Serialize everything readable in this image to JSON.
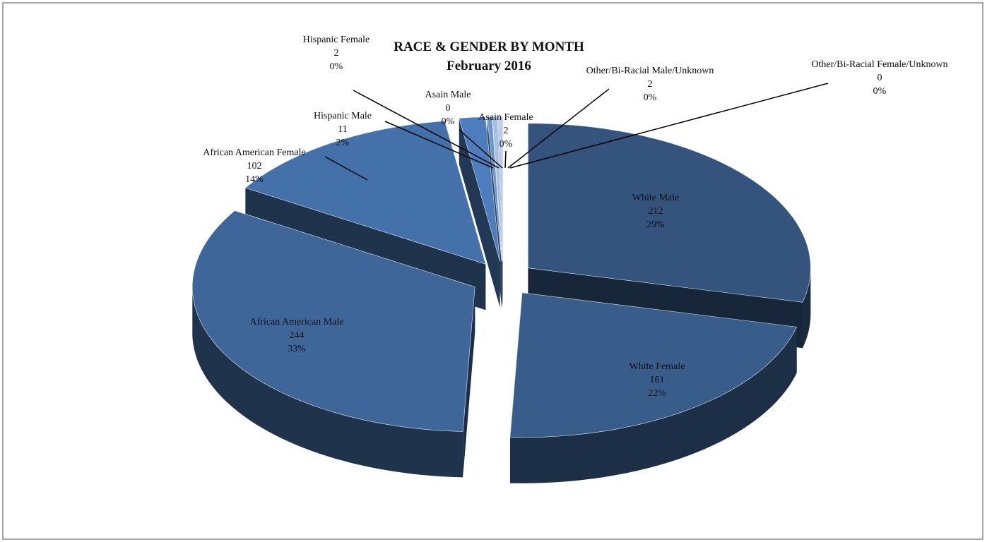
{
  "chart_data": {
    "type": "pie3d",
    "title": "RACE & GENDER BY MONTH",
    "subtitle": "February 2016",
    "categories": [
      "White Male",
      "White Female",
      "African American Male",
      "African American Female",
      "Hispanic Male",
      "Hispanic Female",
      "Asain Male",
      "Asain Female",
      "Other/Bi-Racial Male/Unknown",
      "Other/Bi-Racial Female/Unknown"
    ],
    "values": [
      212,
      161,
      244,
      102,
      11,
      2,
      0,
      2,
      2,
      0
    ],
    "percent_labels": [
      "29%",
      "22%",
      "33%",
      "14%",
      "2%",
      "0%",
      "0%",
      "0%",
      "0%",
      "0%"
    ],
    "colors": [
      "#34547e",
      "#395d8b",
      "#3f6699",
      "#4571ab",
      "#4d7dbd",
      "#6d95c9",
      "#8aaad4",
      "#a6bfe0",
      "#bccfe8",
      "#d2def0"
    ]
  }
}
